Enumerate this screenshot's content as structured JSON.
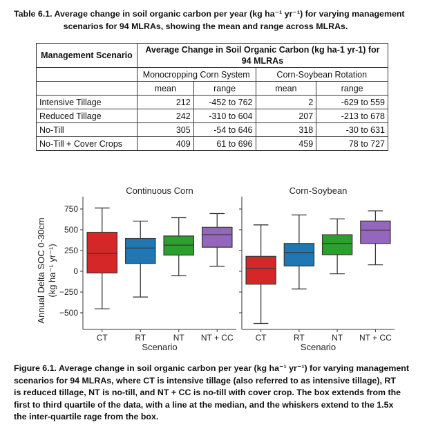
{
  "table": {
    "caption_line1": "Table 6.1. Average change in soil organic carbon per year (kg ha⁻¹ yr⁻¹) for varying management",
    "caption_line2": "scenarios for 94 MLRAs, showing the mean and range across MLRAs.",
    "header_scenario": "Management Scenario",
    "header_avg": "Average Change in Soil Organic Carbon (kg ha-1 yr-1) for 94 MLRAs",
    "group1": "Monocropping Corn System",
    "group2": "Corn-Soybean Rotation",
    "sub_mean": "mean",
    "sub_range": "range",
    "rows": [
      {
        "scenario": "Intensive Tillage",
        "m1": "212",
        "r1": "-452 to 762",
        "m2": "2",
        "r2": "-629 to 559"
      },
      {
        "scenario": "Reduced Tillage",
        "m1": "242",
        "r1": "-310 to 604",
        "m2": "207",
        "r2": "-213 to 678"
      },
      {
        "scenario": "No-Till",
        "m1": "305",
        "r1": "-54 to 646",
        "m2": "318",
        "r2": "-30 to 631"
      },
      {
        "scenario": "No-Till + Cover Crops",
        "m1": "409",
        "r1": "61 to 696",
        "m2": "459",
        "r2": "78 to 727"
      }
    ]
  },
  "figure": {
    "caption_lines": [
      "Figure 6.1. Average change in soil organic carbon per year (kg ha⁻¹ yr⁻¹) for varying management",
      "scenarios for 94 MLRAs, where CT is intensive tillage (also referred to as intensive tillage), RT",
      "is reduced tillage, NT is no-till, and NT + CC is no-till with cover crop. The box extends from the",
      "first to third quartile of the data, with a line at the median, and the whiskers extend to the 1.5x",
      "the inter-quartile rage from the box."
    ]
  },
  "chart_data": {
    "type": "boxplot",
    "ylabel_line1": "Annual Delta SOC 0-30cm",
    "ylabel_line2": "(kg ha⁻¹ yr⁻¹)",
    "xlabel": "Scenario",
    "ylim": [
      -700,
      850
    ],
    "yticks": [
      750,
      500,
      250,
      0,
      -250,
      -500
    ],
    "ytick_labels": [
      "750",
      "500",
      "250",
      "0",
      "−250",
      "−500"
    ],
    "categories": [
      "CT",
      "RT",
      "NT",
      "NT + CC"
    ],
    "colors": [
      "#d62728",
      "#1f77b4",
      "#2ca02c",
      "#9467bd"
    ],
    "panels": [
      {
        "title": "Continuous Corn",
        "boxes": [
          {
            "min": -452,
            "q1": -20,
            "median": 215,
            "q3": 470,
            "max": 762
          },
          {
            "min": -310,
            "q1": 95,
            "median": 280,
            "q3": 395,
            "max": 604
          },
          {
            "min": -54,
            "q1": 195,
            "median": 315,
            "q3": 425,
            "max": 646
          },
          {
            "min": 61,
            "q1": 290,
            "median": 440,
            "q3": 530,
            "max": 696
          }
        ]
      },
      {
        "title": "Corn-Soybean",
        "boxes": [
          {
            "min": -629,
            "q1": -155,
            "median": 35,
            "q3": 180,
            "max": 559
          },
          {
            "min": -213,
            "q1": 65,
            "median": 225,
            "q3": 335,
            "max": 678
          },
          {
            "min": -30,
            "q1": 200,
            "median": 335,
            "q3": 440,
            "max": 631
          },
          {
            "min": 78,
            "q1": 335,
            "median": 495,
            "q3": 605,
            "max": 727
          }
        ]
      }
    ]
  }
}
